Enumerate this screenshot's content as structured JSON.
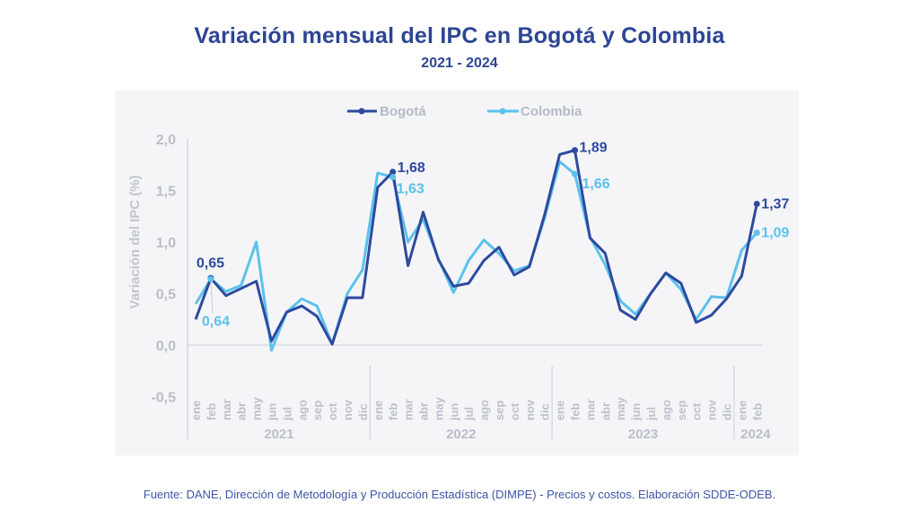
{
  "chart_data": {
    "type": "line",
    "title": "Variación mensual del IPC en Bogotá y Colombia",
    "subtitle": "2021 - 2024",
    "xlabel": "",
    "ylabel": "Variación del IPC (%)",
    "ylim": [
      -0.5,
      2.0
    ],
    "yticks": [
      2.0,
      1.5,
      1.0,
      0.5,
      0.0,
      -0.5
    ],
    "ytick_labels": [
      "2,0",
      "1,5",
      "1,0",
      "0,5",
      "0,0",
      "-0,5"
    ],
    "legend_position": "top-center",
    "grid": false,
    "categories": [
      "ene",
      "feb",
      "mar",
      "abr",
      "may",
      "jun",
      "jul",
      "ago",
      "sep",
      "oct",
      "nov",
      "dic",
      "ene",
      "feb",
      "mar",
      "abr",
      "may",
      "jun",
      "jul",
      "ago",
      "sep",
      "oct",
      "nov",
      "dic",
      "ene",
      "feb",
      "mar",
      "abr",
      "may",
      "jun",
      "jul",
      "ago",
      "sep",
      "oct",
      "nov",
      "dic",
      "ene",
      "feb"
    ],
    "year_groups": [
      {
        "label": "2021",
        "start": 0,
        "count": 12
      },
      {
        "label": "2022",
        "start": 12,
        "count": 12
      },
      {
        "label": "2023",
        "start": 24,
        "count": 12
      },
      {
        "label": "2024",
        "start": 36,
        "count": 2
      }
    ],
    "series": [
      {
        "name": "Bogotá",
        "color": "#2e4a9e",
        "values": [
          0.25,
          0.65,
          0.48,
          0.55,
          0.62,
          0.04,
          0.32,
          0.38,
          0.28,
          0.01,
          0.46,
          0.46,
          1.53,
          1.68,
          0.77,
          1.29,
          0.83,
          0.57,
          0.6,
          0.82,
          0.95,
          0.68,
          0.76,
          1.26,
          1.85,
          1.89,
          1.04,
          0.89,
          0.34,
          0.25,
          0.5,
          0.7,
          0.6,
          0.22,
          0.29,
          0.45,
          0.67,
          1.37
        ]
      },
      {
        "name": "Colombia",
        "color": "#5bc2ec",
        "values": [
          0.4,
          0.64,
          0.52,
          0.58,
          1.0,
          -0.05,
          0.32,
          0.45,
          0.38,
          0.01,
          0.5,
          0.73,
          1.67,
          1.63,
          1.0,
          1.22,
          0.84,
          0.51,
          0.82,
          1.02,
          0.89,
          0.72,
          0.77,
          1.23,
          1.78,
          1.66,
          1.05,
          0.78,
          0.43,
          0.3,
          0.5,
          0.7,
          0.54,
          0.25,
          0.47,
          0.46,
          0.92,
          1.09
        ]
      }
    ],
    "annotations": [
      {
        "series": 0,
        "index": 1,
        "text": "0,65"
      },
      {
        "series": 1,
        "index": 1,
        "text": "0,64"
      },
      {
        "series": 0,
        "index": 13,
        "text": "1,68"
      },
      {
        "series": 1,
        "index": 13,
        "text": "1,63"
      },
      {
        "series": 0,
        "index": 25,
        "text": "1,89"
      },
      {
        "series": 1,
        "index": 25,
        "text": "1,66"
      },
      {
        "series": 0,
        "index": 37,
        "text": "1,37"
      },
      {
        "series": 1,
        "index": 37,
        "text": "1,09"
      }
    ]
  },
  "source": "Fuente: DANE, Dirección de Metodología y Producción Estadística (DIMPE) - Precios y costos. Elaboración SDDE-ODEB."
}
